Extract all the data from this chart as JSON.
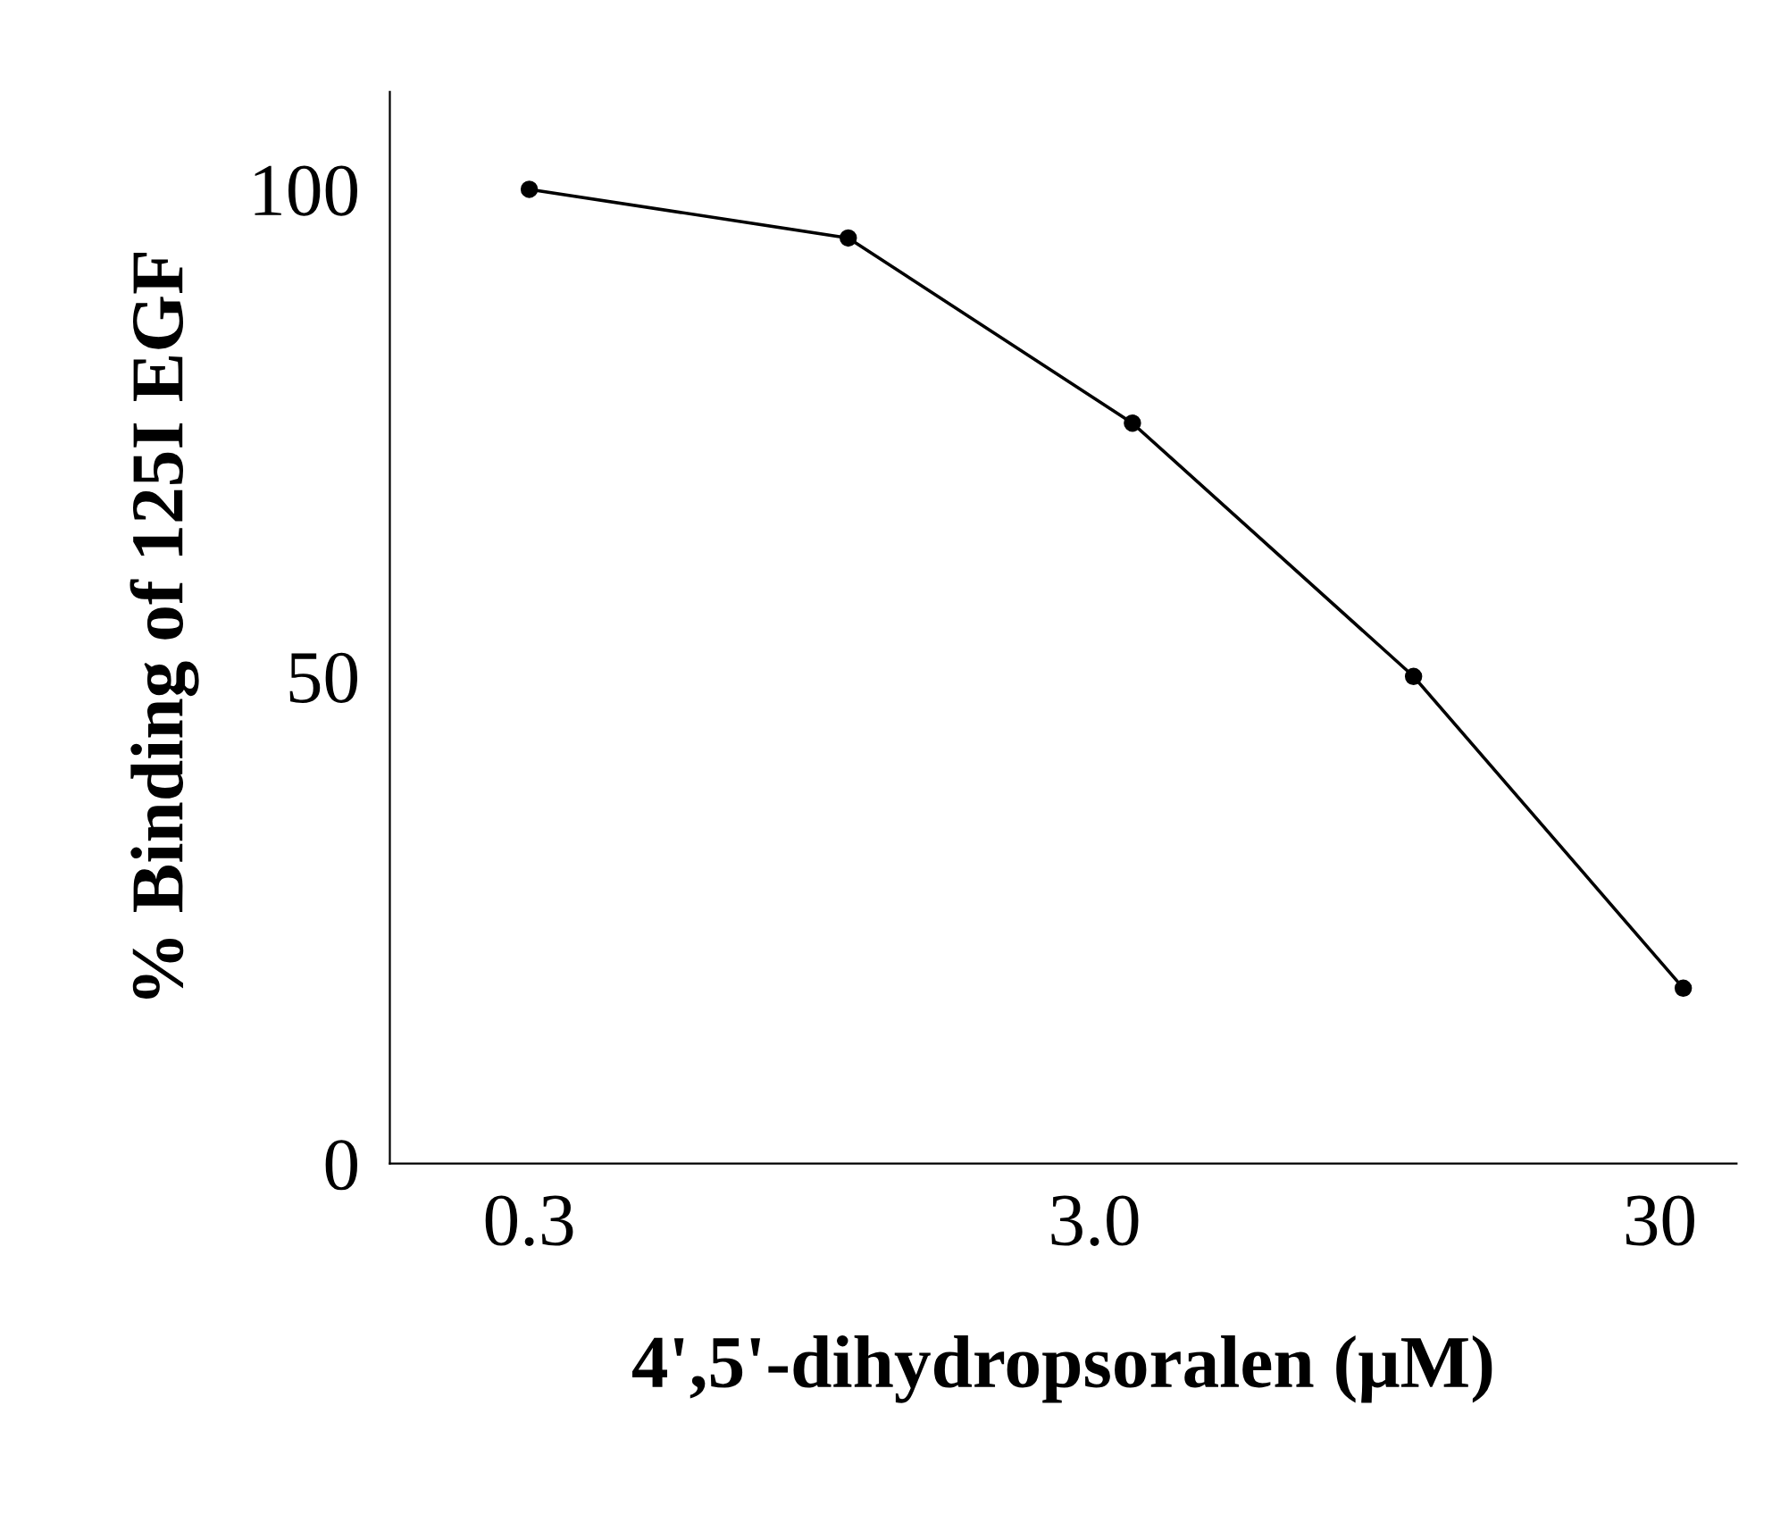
{
  "chart_data": {
    "type": "line",
    "xlabel": "4',5'-dihydropsoralen (μM)",
    "ylabel": "% Binding of 125I EGF",
    "x": [
      0.3,
      1.1,
      3.5,
      11,
      33
    ],
    "series": [
      {
        "color": "#000000",
        "values": [
          100,
          95,
          76,
          50,
          18
        ]
      }
    ],
    "log": "x",
    "xlim": [
      0.17,
      41
    ],
    "ylim": [
      0,
      110
    ],
    "xticks": [
      0.3,
      {
        "value": 3,
        "label": "3.0"
      },
      30
    ],
    "yticks": [
      0,
      50,
      100
    ],
    "marker": "circle",
    "line_style": "solid",
    "grid": false,
    "legend": false
  }
}
